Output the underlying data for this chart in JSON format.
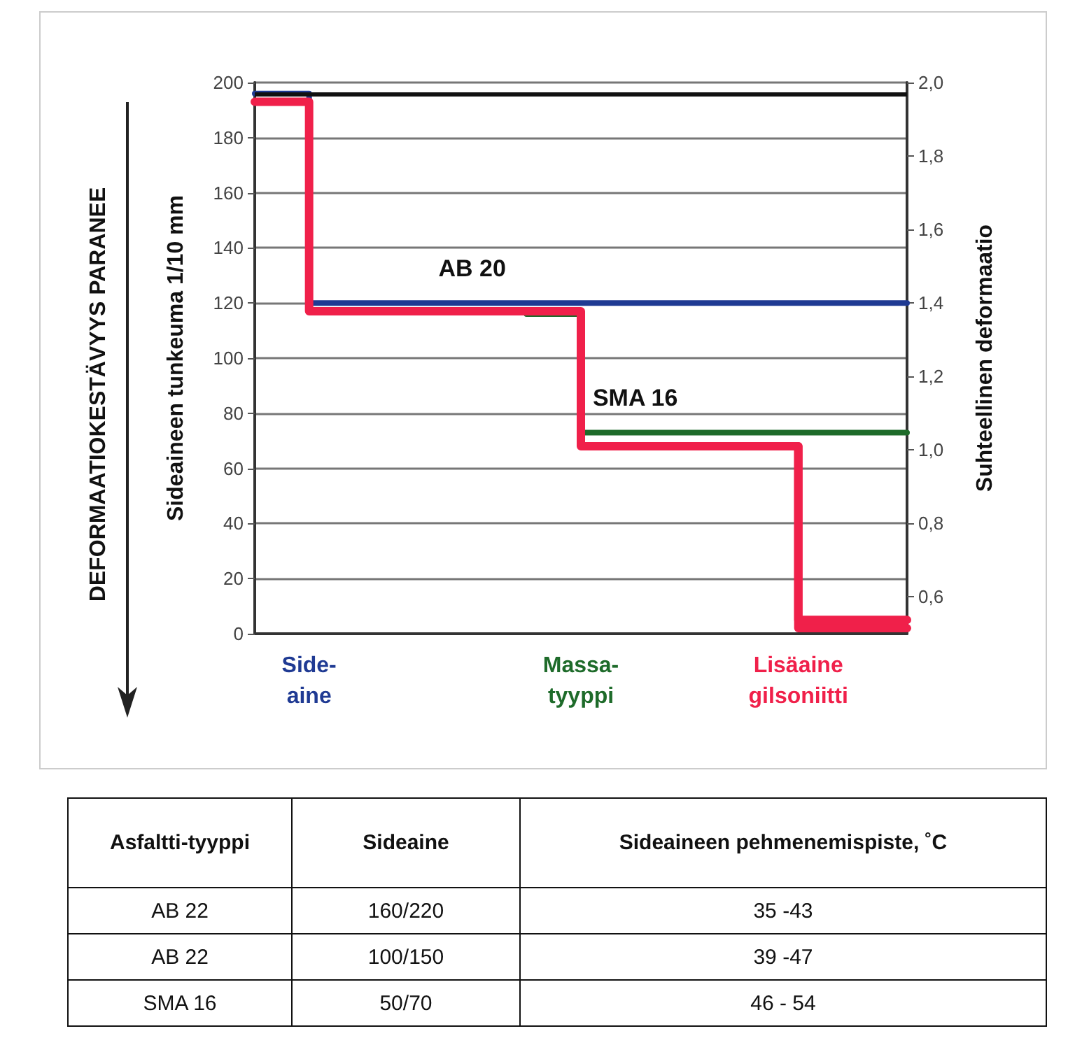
{
  "chart_data": [
    {
      "type": "step",
      "categories": [
        null,
        "Side-\naine",
        null,
        null,
        null,
        null,
        "Massa-\ntyyppi",
        null,
        null,
        null,
        "Lisäaine\ngilsoniitti",
        null,
        null
      ],
      "ylabel": "Sideaineen tunkeuma 1/10 mm",
      "y2label": "Suhteellinen deformaatio",
      "ylim": [
        0,
        200
      ],
      "yticks": [
        0,
        20,
        40,
        60,
        80,
        100,
        120,
        140,
        160,
        180,
        200
      ],
      "y2lim": [
        0.5,
        2.0
      ],
      "y2ticks": [
        {
          "value": 0.6,
          "label": "0,6"
        },
        {
          "value": 0.8,
          "label": "0,8"
        },
        {
          "value": 1.0,
          "label": "1,0"
        },
        {
          "value": 1.2,
          "label": "1,2"
        },
        {
          "value": 1.4,
          "label": "1,4"
        },
        {
          "value": 1.6,
          "label": "1,6"
        },
        {
          "value": 1.8,
          "label": "1,8"
        },
        {
          "value": 2.0,
          "label": "2,0"
        }
      ],
      "grid": "y",
      "legend": false,
      "marker": "none",
      "line_style": "solid",
      "series": [
        {
          "name": "AB 20",
          "color": "#1f3a93",
          "values": [
            196,
            120,
            120,
            120,
            120,
            120,
            120,
            120,
            120,
            120,
            120,
            120,
            120
          ]
        },
        {
          "name": "SMA 16",
          "color": "#1e6b2a",
          "values": [
            null,
            null,
            null,
            null,
            null,
            116,
            73,
            73,
            73,
            73,
            73,
            73,
            73
          ]
        },
        {
          "color": "#f0204a",
          "values": [
            193,
            117,
            117,
            117,
            117,
            117,
            68,
            68,
            68,
            68,
            2,
            2,
            2
          ]
        },
        {
          "color": "#f0204a",
          "values": [
            null,
            null,
            null,
            null,
            null,
            null,
            null,
            null,
            null,
            68,
            5,
            5,
            5
          ]
        }
      ],
      "ref_lines": [
        {
          "axis": "y",
          "value": 196,
          "label": null,
          "color": "#111111"
        }
      ],
      "annotations": [
        "DEFORMAATIOKESTÄVYYS PARANEE"
      ]
    },
    {
      "type": "other",
      "categories": [
        "Asfaltti-tyyppi",
        "Sideaine",
        "Sideaineen pehmenemispiste, ˚C"
      ],
      "cell_labels": [
        [
          "AB 22",
          "160/220",
          "35 -43"
        ],
        [
          "AB 22",
          "100/150",
          "39 -47"
        ],
        [
          "SMA 16",
          "50/70",
          "46 - 54"
        ]
      ]
    }
  ]
}
